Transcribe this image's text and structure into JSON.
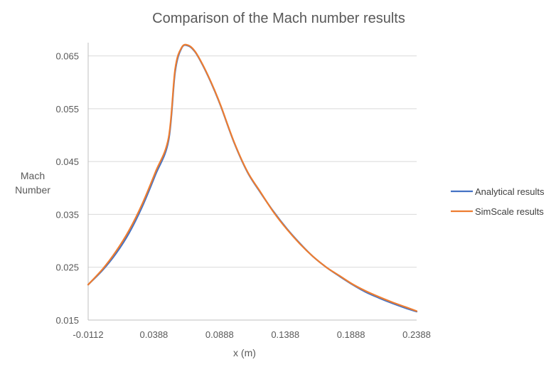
{
  "chart_data": {
    "type": "line",
    "title": "Comparison of the Mach number results",
    "xlabel": "x (m)",
    "ylabel": [
      "Mach",
      "Number"
    ],
    "xlim": [
      -0.0112,
      0.2388
    ],
    "ylim": [
      0.015,
      0.0675
    ],
    "x_ticks": [
      "-0.0112",
      "0.0388",
      "0.0888",
      "0.1388",
      "0.1888",
      "0.2388"
    ],
    "y_ticks": [
      "0.015",
      "0.025",
      "0.035",
      "0.045",
      "0.055",
      "0.065"
    ],
    "grid": "horizontal",
    "legend_position": "right",
    "series": [
      {
        "name": "Analytical results",
        "color": "#4472C4",
        "x": [
          -0.0112,
          0.0,
          0.01,
          0.02,
          0.03,
          0.04,
          0.05,
          0.055,
          0.06,
          0.065,
          0.07,
          0.075,
          0.08,
          0.085,
          0.09,
          0.1,
          0.11,
          0.12,
          0.13,
          0.14,
          0.15,
          0.16,
          0.17,
          0.18,
          0.19,
          0.2,
          0.21,
          0.22,
          0.23,
          0.2388
        ],
        "y": [
          0.0217,
          0.0245,
          0.0276,
          0.0315,
          0.0365,
          0.0425,
          0.049,
          0.062,
          0.0665,
          0.0669,
          0.0658,
          0.0637,
          0.0612,
          0.0584,
          0.0553,
          0.0485,
          0.043,
          0.0391,
          0.0355,
          0.0323,
          0.0295,
          0.027,
          0.025,
          0.0233,
          0.0217,
          0.0203,
          0.0192,
          0.0182,
          0.0173,
          0.0166
        ]
      },
      {
        "name": "SimScale results",
        "color": "#ED7D31",
        "x": [
          -0.0112,
          0.0,
          0.01,
          0.02,
          0.03,
          0.04,
          0.05,
          0.055,
          0.06,
          0.065,
          0.07,
          0.075,
          0.08,
          0.085,
          0.09,
          0.1,
          0.11,
          0.12,
          0.13,
          0.14,
          0.15,
          0.16,
          0.17,
          0.18,
          0.19,
          0.2,
          0.21,
          0.22,
          0.23,
          0.2388
        ],
        "y": [
          0.0217,
          0.0247,
          0.028,
          0.032,
          0.037,
          0.043,
          0.0495,
          0.0625,
          0.0666,
          0.067,
          0.0659,
          0.0638,
          0.0613,
          0.0585,
          0.0554,
          0.0486,
          0.0431,
          0.0392,
          0.0354,
          0.0322,
          0.0294,
          0.027,
          0.025,
          0.0234,
          0.0218,
          0.0205,
          0.0194,
          0.0184,
          0.0175,
          0.0167
        ]
      }
    ]
  }
}
